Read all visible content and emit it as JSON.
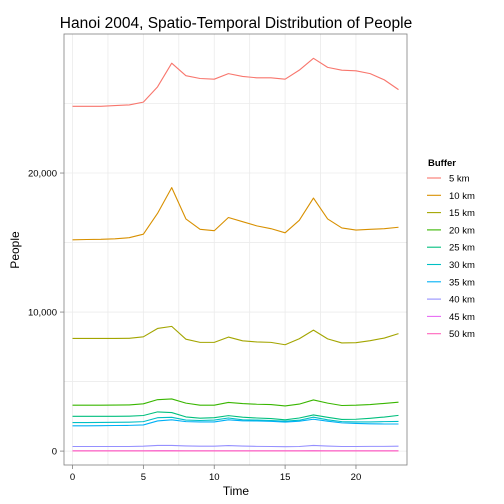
{
  "chart_data": {
    "type": "line",
    "title": "Hanoi 2004, Spatio-Temporal Distribution of People",
    "xlabel": "Time",
    "ylabel": "People",
    "xlim": [
      -0.6,
      23.6
    ],
    "ylim": [
      -1000,
      30000
    ],
    "xticks": [
      0,
      5,
      10,
      15,
      20
    ],
    "xtick_labels": [
      "0",
      "5",
      "10",
      "15",
      "20"
    ],
    "yticks": [
      0,
      10000,
      20000
    ],
    "ytick_labels": [
      "0",
      "10,000",
      "20,000"
    ],
    "grid": true,
    "legend": {
      "title": "Buffer",
      "placement": "right"
    },
    "x": [
      0,
      1,
      2,
      3,
      4,
      5,
      6,
      7,
      8,
      9,
      10,
      11,
      12,
      13,
      14,
      15,
      16,
      17,
      18,
      19,
      20,
      21,
      22,
      23
    ],
    "series": [
      {
        "name": "5 km",
        "color": "#F8766D",
        "values": [
          24800,
          24800,
          24800,
          24850,
          24900,
          25100,
          26200,
          27900,
          27000,
          26800,
          26750,
          27150,
          26950,
          26850,
          26850,
          26750,
          27400,
          28250,
          27600,
          27400,
          27350,
          27150,
          26700,
          26000
        ]
      },
      {
        "name": "10 km",
        "color": "#D89000",
        "values": [
          15200,
          15220,
          15230,
          15270,
          15350,
          15600,
          17100,
          18950,
          16700,
          15950,
          15850,
          16800,
          16500,
          16200,
          16000,
          15700,
          16600,
          18200,
          16700,
          16050,
          15900,
          15950,
          16000,
          16100
        ]
      },
      {
        "name": "15 km",
        "color": "#A3A500",
        "values": [
          8100,
          8100,
          8100,
          8100,
          8110,
          8220,
          8820,
          8970,
          8050,
          7820,
          7820,
          8200,
          7930,
          7850,
          7820,
          7650,
          8080,
          8700,
          8070,
          7780,
          7800,
          7940,
          8130,
          8450
        ]
      },
      {
        "name": "20 km",
        "color": "#39B600",
        "values": [
          3300,
          3300,
          3300,
          3310,
          3320,
          3400,
          3700,
          3750,
          3450,
          3300,
          3300,
          3500,
          3420,
          3370,
          3350,
          3250,
          3380,
          3680,
          3450,
          3280,
          3300,
          3350,
          3430,
          3520
        ]
      },
      {
        "name": "25 km",
        "color": "#00BF7D",
        "values": [
          2500,
          2500,
          2500,
          2500,
          2510,
          2560,
          2820,
          2770,
          2460,
          2370,
          2400,
          2550,
          2440,
          2380,
          2340,
          2250,
          2380,
          2600,
          2430,
          2280,
          2290,
          2360,
          2450,
          2570
        ]
      },
      {
        "name": "30 km",
        "color": "#00BFC4",
        "values": [
          2050,
          2050,
          2060,
          2070,
          2080,
          2120,
          2400,
          2430,
          2230,
          2200,
          2230,
          2380,
          2250,
          2230,
          2200,
          2150,
          2220,
          2440,
          2250,
          2120,
          2100,
          2100,
          2120,
          2130
        ]
      },
      {
        "name": "35 km",
        "color": "#00B0F6",
        "values": [
          1820,
          1820,
          1830,
          1840,
          1850,
          1880,
          2170,
          2250,
          2120,
          2100,
          2100,
          2250,
          2180,
          2170,
          2140,
          2090,
          2150,
          2290,
          2150,
          2030,
          1990,
          1960,
          1950,
          1950
        ]
      },
      {
        "name": "40 km",
        "color": "#9590FF",
        "values": [
          330,
          330,
          330,
          330,
          330,
          350,
          410,
          410,
          370,
          350,
          350,
          400,
          360,
          340,
          330,
          320,
          330,
          410,
          360,
          330,
          330,
          340,
          340,
          350
        ]
      },
      {
        "name": "45 km",
        "color": "#E76BF3",
        "values": [
          20,
          20,
          20,
          20,
          20,
          22,
          28,
          28,
          24,
          22,
          22,
          26,
          24,
          22,
          22,
          20,
          22,
          28,
          24,
          22,
          22,
          22,
          22,
          22
        ]
      },
      {
        "name": "50 km",
        "color": "#FF62BC",
        "values": [
          10,
          10,
          10,
          10,
          10,
          11,
          14,
          14,
          12,
          11,
          11,
          13,
          12,
          11,
          11,
          10,
          11,
          14,
          12,
          11,
          11,
          11,
          11,
          11
        ]
      }
    ]
  }
}
